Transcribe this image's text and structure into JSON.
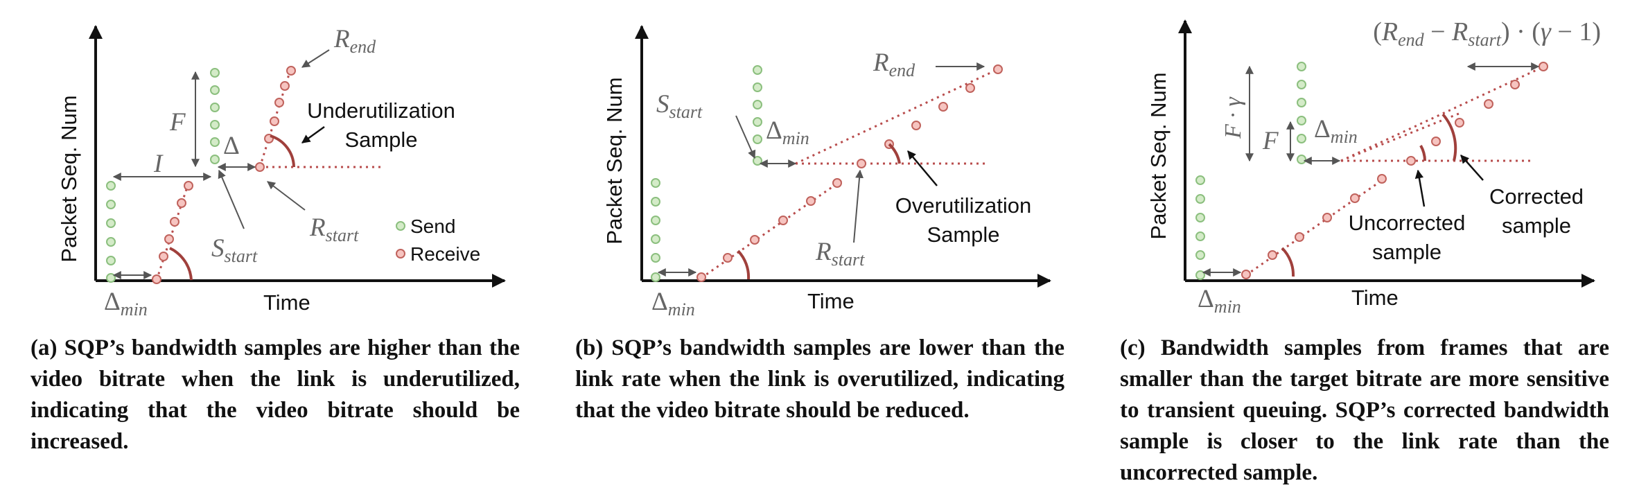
{
  "panels": [
    {
      "ylabel": "Packet Seq. Num",
      "xlabel": "Time",
      "delta_min": {
        "base": "Δ",
        "sub": "min"
      },
      "s_start": {
        "base": "S",
        "sub": "start"
      },
      "r_start": {
        "base": "R",
        "sub": "start"
      },
      "r_end": {
        "base": "R",
        "sub": "end"
      },
      "f_label": "F",
      "i_label": "I",
      "delta_label": "Δ",
      "sample_line1": "Underutilization",
      "sample_line2": "Sample",
      "legend_send": "Send",
      "legend_receive": "Receive",
      "caption": "(a) SQP’s bandwidth samples are higher than the video bitrate when the link is underutilized, indicating that the video bitrate should be increased."
    },
    {
      "ylabel": "Packet Seq. Num",
      "xlabel": "Time",
      "delta_min": {
        "base": "Δ",
        "sub": "min"
      },
      "s_start": {
        "base": "S",
        "sub": "start"
      },
      "r_start": {
        "base": "R",
        "sub": "start"
      },
      "r_end": {
        "base": "R",
        "sub": "end"
      },
      "delta_min_mid": {
        "base": "Δ",
        "sub": "min"
      },
      "sample_line1": "Overutilization",
      "sample_line2": "Sample",
      "caption": "(b) SQP’s bandwidth samples are lower than the link rate when the link is overutilized, indicating that the video bitrate should be reduced."
    },
    {
      "ylabel": "Packet Seq. Num",
      "xlabel": "Time",
      "delta_min": {
        "base": "Δ",
        "sub": "min"
      },
      "delta_min_mid": {
        "base": "Δ",
        "sub": "min"
      },
      "formula": "(R_end − R_start) · (γ − 1)",
      "f_gamma": "F · γ",
      "f_label": "F",
      "uncorrected_line1": "Uncorrected",
      "uncorrected_line2": "sample",
      "corrected_line1": "Corrected",
      "corrected_line2": "sample",
      "caption": "(c) Bandwidth samples from frames that are smaller than the target bitrate are more sensitive to transient queuing. SQP’s corrected bandwidth sample is closer to the link rate than the uncorrected sample."
    }
  ]
}
